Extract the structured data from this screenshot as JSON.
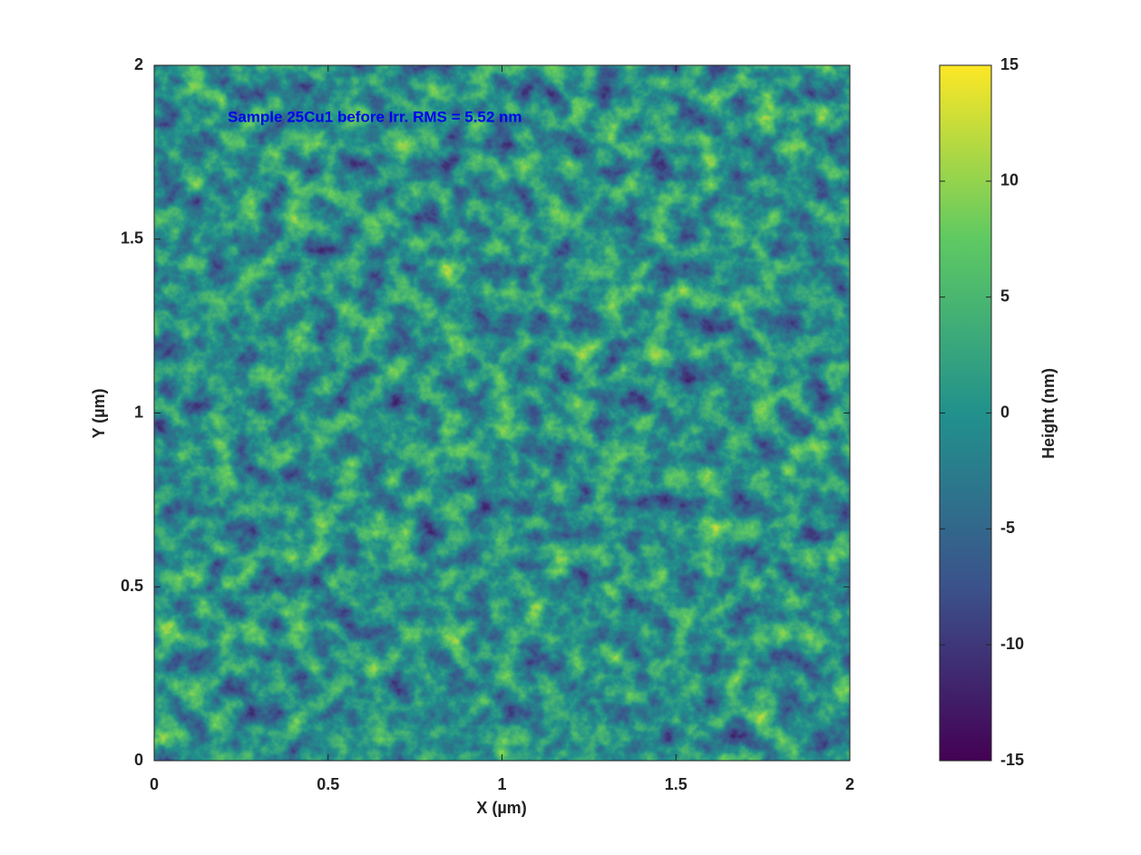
{
  "chart_data": {
    "type": "heatmap",
    "annotation": "Sample 25Cu1 before Irr.  RMS = 5.52 nm",
    "xlabel": "X (µm)",
    "ylabel": "Y (µm)",
    "colorbar_label": "Height (nm)",
    "xlim": [
      0,
      2
    ],
    "xticks": [
      0,
      0.5,
      1,
      1.5,
      2
    ],
    "ylim": [
      0,
      2
    ],
    "yticks": [
      0,
      0.5,
      1,
      1.5,
      2
    ],
    "clim": [
      -15,
      15
    ],
    "cticks": [
      -15,
      -10,
      -5,
      0,
      5,
      10,
      15
    ],
    "colorscale": [
      "#440154",
      "#3b528b",
      "#21918c",
      "#5ec962",
      "#fde725"
    ]
  }
}
